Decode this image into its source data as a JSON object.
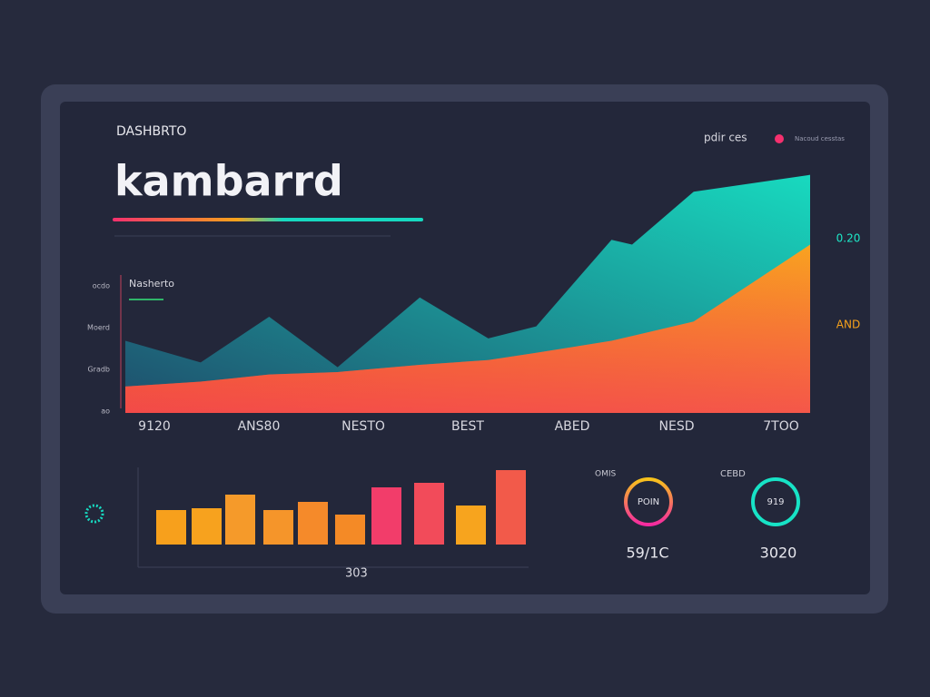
{
  "header": {
    "kicker": "DASHBRTO",
    "title": "kambarrd",
    "menu": "pdir ces",
    "legend": "Nacoud cesstas"
  },
  "area_chart": {
    "label": "Nasherto",
    "y_labels": [
      "ocdo",
      "Moerd",
      "Gradb",
      "ao"
    ],
    "x_labels": [
      "9120",
      "ANS80",
      "NESTO",
      "BEST",
      "ABED",
      "NESD",
      "7TOO"
    ],
    "right_labels": [
      {
        "text": "0.20",
        "color": "#1de9c8"
      },
      {
        "text": "AND",
        "color": "#f7a21b"
      }
    ],
    "xlim": [
      0,
      100
    ],
    "ylim": [
      0,
      100
    ],
    "x": [
      0,
      11,
      21,
      31,
      43,
      53,
      60,
      71,
      74,
      83,
      100
    ],
    "series": [
      {
        "color": "#17e3c6",
        "values": [
          30,
          21,
          40,
          19,
          48,
          31,
          36,
          72,
          70,
          92,
          99
        ]
      },
      {
        "color": "#f9a320",
        "values": [
          11,
          13,
          16,
          17,
          20,
          22,
          25,
          30,
          32,
          38,
          70
        ]
      }
    ]
  },
  "bar_chart": {
    "label": "303",
    "ylim": [
      0,
      100
    ],
    "values": [
      38,
      40,
      55,
      38,
      47,
      33,
      63,
      68,
      43,
      82
    ],
    "colors": [
      "#f7a01c",
      "#f7a21e",
      "#f59a2a",
      "#f5952a",
      "#f58a2a",
      "#f48a26",
      "#f23d6a",
      "#f24b5a",
      "#f7a41e",
      "#f25a4a"
    ]
  },
  "donuts": [
    {
      "title": "OMIS",
      "center": "POIN",
      "caption": "59/1C"
    },
    {
      "title": "CEBD",
      "center": "919",
      "caption": "3020"
    }
  ]
}
